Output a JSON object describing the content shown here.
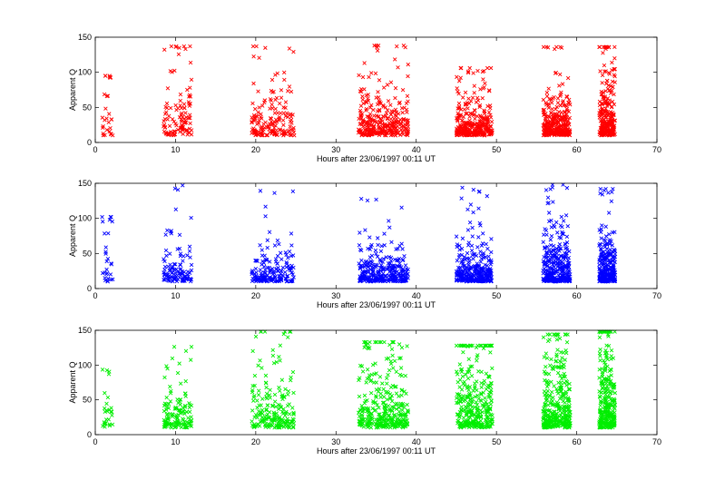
{
  "chart_data": [
    {
      "type": "scatter",
      "title": "",
      "xlabel": "Hours after 23/06/1997 00:11 UT",
      "ylabel": "Apparent Q",
      "xlim": [
        0,
        70
      ],
      "ylim": [
        0,
        150
      ],
      "xticks": [
        0,
        10,
        20,
        30,
        40,
        50,
        60,
        70
      ],
      "yticks": [
        0,
        50,
        100,
        150
      ],
      "grid": false,
      "marker": "x",
      "color": "#ff0000",
      "series": [
        {
          "clusters": [
            {
              "x_range": [
                0.8,
                2.2
              ],
              "n": 28,
              "q_median": 30,
              "q_max": 95
            },
            {
              "x_range": [
                8.5,
                12.0
              ],
              "n": 110,
              "q_median": 28,
              "q_max": 137
            },
            {
              "x_range": [
                19.5,
                24.8
              ],
              "n": 170,
              "q_median": 26,
              "q_max": 137
            },
            {
              "x_range": [
                32.8,
                39.0
              ],
              "n": 300,
              "q_median": 24,
              "q_max": 138
            },
            {
              "x_range": [
                45.0,
                49.5
              ],
              "n": 300,
              "q_median": 22,
              "q_max": 106
            },
            {
              "x_range": [
                55.8,
                59.2
              ],
              "n": 300,
              "q_median": 22,
              "q_max": 136
            },
            {
              "x_range": [
                62.8,
                64.8
              ],
              "n": 260,
              "q_median": 28,
              "q_max": 136
            }
          ]
        }
      ]
    },
    {
      "type": "scatter",
      "title": "",
      "xlabel": "Hours after 23/06/1997 00:11 UT",
      "ylabel": "Apparent Q",
      "xlim": [
        0,
        70
      ],
      "ylim": [
        0,
        150
      ],
      "xticks": [
        0,
        10,
        20,
        30,
        40,
        50,
        60,
        70
      ],
      "yticks": [
        0,
        50,
        100,
        150
      ],
      "grid": false,
      "marker": "x",
      "color": "#0000ff",
      "series": [
        {
          "clusters": [
            {
              "x_range": [
                0.8,
                2.2
              ],
              "n": 28,
              "q_median": 28,
              "q_max": 102
            },
            {
              "x_range": [
                8.5,
                12.0
              ],
              "n": 110,
              "q_median": 22,
              "q_max": 148
            },
            {
              "x_range": [
                19.5,
                24.8
              ],
              "n": 170,
              "q_median": 22,
              "q_max": 143
            },
            {
              "x_range": [
                32.8,
                39.0
              ],
              "n": 300,
              "q_median": 20,
              "q_max": 133
            },
            {
              "x_range": [
                45.0,
                49.5
              ],
              "n": 300,
              "q_median": 22,
              "q_max": 145
            },
            {
              "x_range": [
                55.8,
                59.2
              ],
              "n": 320,
              "q_median": 24,
              "q_max": 148
            },
            {
              "x_range": [
                62.8,
                64.8
              ],
              "n": 260,
              "q_median": 24,
              "q_max": 142
            }
          ]
        }
      ]
    },
    {
      "type": "scatter",
      "title": "",
      "xlabel": "Hours after 23/06/1997 00:11 UT",
      "ylabel": "Apparent Q",
      "xlim": [
        0,
        70
      ],
      "ylim": [
        0,
        150
      ],
      "xticks": [
        0,
        10,
        20,
        30,
        40,
        50,
        60,
        70
      ],
      "yticks": [
        0,
        50,
        100,
        150
      ],
      "grid": false,
      "marker": "x",
      "color": "#00ee00",
      "series": [
        {
          "clusters": [
            {
              "x_range": [
                0.8,
                2.2
              ],
              "n": 28,
              "q_median": 24,
              "q_max": 96
            },
            {
              "x_range": [
                8.5,
                12.0
              ],
              "n": 130,
              "q_median": 26,
              "q_max": 128
            },
            {
              "x_range": [
                19.5,
                24.8
              ],
              "n": 200,
              "q_median": 28,
              "q_max": 148
            },
            {
              "x_range": [
                32.8,
                39.0
              ],
              "n": 320,
              "q_median": 30,
              "q_max": 133
            },
            {
              "x_range": [
                45.0,
                49.5
              ],
              "n": 300,
              "q_median": 32,
              "q_max": 128
            },
            {
              "x_range": [
                55.8,
                59.2
              ],
              "n": 320,
              "q_median": 32,
              "q_max": 144
            },
            {
              "x_range": [
                62.8,
                64.8
              ],
              "n": 280,
              "q_median": 38,
              "q_max": 148
            }
          ]
        }
      ]
    }
  ]
}
